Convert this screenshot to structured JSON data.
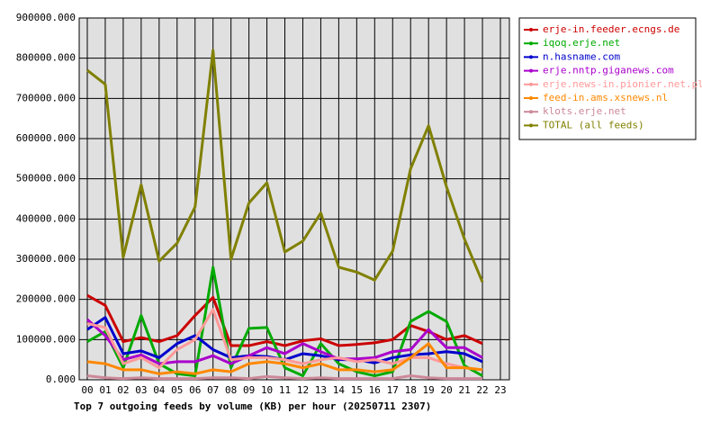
{
  "chart_data": {
    "type": "line",
    "title": "Top 7 outgoing feeds by volume (KB) per hour (20250711 2307)",
    "categories": [
      "00",
      "01",
      "02",
      "03",
      "04",
      "05",
      "06",
      "07",
      "08",
      "09",
      "10",
      "11",
      "12",
      "13",
      "14",
      "15",
      "16",
      "17",
      "18",
      "19",
      "20",
      "21",
      "22",
      "23"
    ],
    "ylim": [
      0,
      900000
    ],
    "yticks": [
      {
        "value": 0,
        "label": "0.000"
      },
      {
        "value": 100000,
        "label": "100000.000"
      },
      {
        "value": 200000,
        "label": "200000.000"
      },
      {
        "value": 300000,
        "label": "300000.000"
      },
      {
        "value": 400000,
        "label": "400000.000"
      },
      {
        "value": 500000,
        "label": "500000.000"
      },
      {
        "value": 600000,
        "label": "600000.000"
      },
      {
        "value": 700000,
        "label": "700000.000"
      },
      {
        "value": 800000,
        "label": "800000.000"
      },
      {
        "value": 900000,
        "label": "900000.000"
      }
    ],
    "grid": true,
    "legend": "right",
    "series": [
      {
        "name": "erje-in.feeder.ecngs.de",
        "color": "#cc0000",
        "values": [
          210000,
          185000,
          95000,
          105000,
          95000,
          110000,
          160000,
          205000,
          85000,
          85000,
          95000,
          85000,
          97000,
          102000,
          85000,
          88000,
          92000,
          100000,
          135000,
          120000,
          100000,
          110000,
          90000,
          null
        ]
      },
      {
        "name": "iqoq.erje.net",
        "color": "#00aa00",
        "values": [
          95000,
          120000,
          30000,
          160000,
          40000,
          15000,
          10000,
          280000,
          30000,
          128000,
          130000,
          30000,
          10000,
          90000,
          40000,
          20000,
          10000,
          20000,
          145000,
          170000,
          145000,
          35000,
          10000,
          null
        ]
      },
      {
        "name": "n.hasname.com",
        "color": "#0000cc",
        "values": [
          125000,
          155000,
          65000,
          72000,
          55000,
          90000,
          110000,
          75000,
          55000,
          60000,
          58000,
          50000,
          65000,
          60000,
          50000,
          50000,
          42000,
          55000,
          62000,
          65000,
          70000,
          65000,
          45000,
          null
        ]
      },
      {
        "name": "erje.nntp.giganews.com",
        "color": "#aa00cc",
        "values": [
          150000,
          110000,
          50000,
          62000,
          40000,
          45000,
          45000,
          60000,
          40000,
          60000,
          80000,
          65000,
          90000,
          70000,
          52000,
          52000,
          55000,
          70000,
          75000,
          125000,
          80000,
          80000,
          55000,
          null
        ]
      },
      {
        "name": "erje.news-in.pionier.net.pl",
        "color": "#ff9999",
        "values": [
          140000,
          130000,
          40000,
          55000,
          30000,
          75000,
          100000,
          175000,
          50000,
          55000,
          55000,
          50000,
          40000,
          50000,
          55000,
          45000,
          50000,
          40000,
          55000,
          55000,
          40000,
          30000,
          25000,
          null
        ]
      },
      {
        "name": "feed-in.ams.xsnews.nl",
        "color": "#ff8800",
        "values": [
          45000,
          40000,
          25000,
          25000,
          15000,
          20000,
          15000,
          25000,
          20000,
          40000,
          45000,
          40000,
          30000,
          40000,
          25000,
          25000,
          20000,
          25000,
          55000,
          90000,
          30000,
          30000,
          25000,
          null
        ]
      },
      {
        "name": "klots.erje.net",
        "color": "#cc8899",
        "values": [
          10000,
          5000,
          3000,
          5000,
          3000,
          3000,
          3000,
          5000,
          5000,
          3000,
          8000,
          5000,
          3000,
          5000,
          3000,
          3000,
          3000,
          3000,
          10000,
          5000,
          3000,
          3000,
          3000,
          null
        ]
      },
      {
        "name": "TOTAL (all feeds)",
        "color": "#808000",
        "values": [
          770000,
          735000,
          305000,
          485000,
          295000,
          340000,
          430000,
          820000,
          300000,
          440000,
          490000,
          318000,
          345000,
          415000,
          280000,
          268000,
          248000,
          320000,
          525000,
          632000,
          480000,
          350000,
          243000,
          null
        ]
      }
    ]
  }
}
